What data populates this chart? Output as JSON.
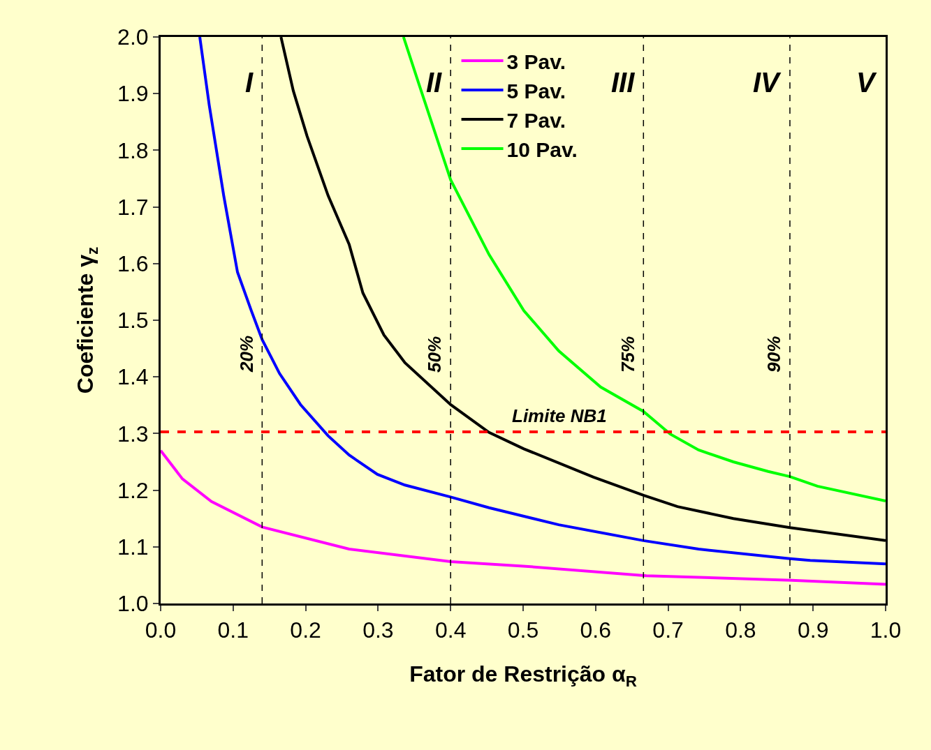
{
  "chart_data": {
    "type": "line",
    "xlabel": "Fator de Restrição α$_{R}$",
    "ylabel": "Coeficiente γ$_{z}$",
    "xlim": [
      0,
      1
    ],
    "ylim": [
      1,
      2
    ],
    "xticks": [
      {
        "value": 0,
        "label": "0.0"
      },
      {
        "value": 0.1,
        "label": "0.1"
      },
      {
        "value": 0.2,
        "label": "0.2"
      },
      {
        "value": 0.3,
        "label": "0.3"
      },
      {
        "value": 0.4,
        "label": "0.4"
      },
      {
        "value": 0.5,
        "label": "0.5"
      },
      {
        "value": 0.6,
        "label": "0.6"
      },
      {
        "value": 0.7,
        "label": "0.7"
      },
      {
        "value": 0.8,
        "label": "0.8"
      },
      {
        "value": 0.9,
        "label": "0.9"
      },
      {
        "value": 1,
        "label": "1.0"
      }
    ],
    "yticks": [
      {
        "value": 1,
        "label": "1.0"
      },
      {
        "value": 1.1,
        "label": "1.1"
      },
      {
        "value": 1.2,
        "label": "1.2"
      },
      {
        "value": 1.3,
        "label": "1.3"
      },
      {
        "value": 1.4,
        "label": "1.4"
      },
      {
        "value": 1.5,
        "label": "1.5"
      },
      {
        "value": 1.6,
        "label": "1.6"
      },
      {
        "value": 1.7,
        "label": "1.7"
      },
      {
        "value": 1.8,
        "label": "1.8"
      },
      {
        "value": 1.9,
        "label": "1.9"
      },
      {
        "value": 2,
        "label": "2.0"
      }
    ],
    "grid": false,
    "legend": "top center",
    "marker": "none",
    "line_style": "solid",
    "series": [
      {
        "name": "3 Pav.",
        "color": "#ff00ff",
        "x": [
          0,
          0.03,
          0.07,
          0.14,
          0.26,
          0.4,
          0.5,
          0.67,
          0.87,
          1.0
        ],
        "values": [
          1.27,
          1.22,
          1.18,
          1.135,
          1.096,
          1.074,
          1.066,
          1.049,
          1.041,
          1.034
        ]
      },
      {
        "name": "5 Pav.",
        "color": "#0000ff",
        "x": [
          0.054,
          0.067,
          0.087,
          0.106,
          0.125,
          0.14,
          0.164,
          0.193,
          0.231,
          0.26,
          0.299,
          0.337,
          0.4,
          0.453,
          0.549,
          0.666,
          0.742,
          0.868,
          0.896,
          1.0
        ],
        "values": [
          2.0,
          1.88,
          1.72,
          1.585,
          1.517,
          1.466,
          1.406,
          1.351,
          1.296,
          1.262,
          1.228,
          1.209,
          1.188,
          1.169,
          1.139,
          1.111,
          1.096,
          1.079,
          1.076,
          1.07
        ]
      },
      {
        "name": "7 Pav.",
        "color": "#000000",
        "x": [
          0.166,
          0.183,
          0.202,
          0.231,
          0.26,
          0.279,
          0.308,
          0.337,
          0.4,
          0.453,
          0.501,
          0.597,
          0.666,
          0.713,
          0.79,
          0.868,
          1.0
        ],
        "values": [
          2.0,
          1.905,
          1.825,
          1.72,
          1.634,
          1.548,
          1.474,
          1.425,
          1.351,
          1.302,
          1.273,
          1.223,
          1.191,
          1.171,
          1.15,
          1.134,
          1.111
        ]
      },
      {
        "name": "10 Pav.",
        "color": "#00ff00",
        "x": [
          0.335,
          0.356,
          0.4,
          0.453,
          0.501,
          0.549,
          0.607,
          0.666,
          0.703,
          0.742,
          0.79,
          0.838,
          0.868,
          0.906,
          1.0
        ],
        "values": [
          2.0,
          1.918,
          1.748,
          1.616,
          1.517,
          1.446,
          1.382,
          1.339,
          1.299,
          1.271,
          1.25,
          1.233,
          1.224,
          1.207,
          1.181
        ]
      }
    ],
    "ref_lines": [
      {
        "axis": "y",
        "value": 1.303,
        "label": "Limite NB1",
        "color": "#ff0000",
        "line_style": "dashed"
      },
      {
        "axis": "x",
        "value": 0.14,
        "color": "#000000",
        "line_style": "dashed"
      },
      {
        "axis": "x",
        "value": 0.4,
        "color": "#000000",
        "line_style": "dashed"
      },
      {
        "axis": "x",
        "value": 0.666,
        "color": "#000000",
        "line_style": "dashed"
      },
      {
        "axis": "x",
        "value": 0.868,
        "color": "#000000",
        "line_style": "dashed"
      }
    ],
    "annotations": [
      "I",
      "II",
      "III",
      "IV",
      "V",
      "20%",
      "50%",
      "75%",
      "90%"
    ]
  }
}
